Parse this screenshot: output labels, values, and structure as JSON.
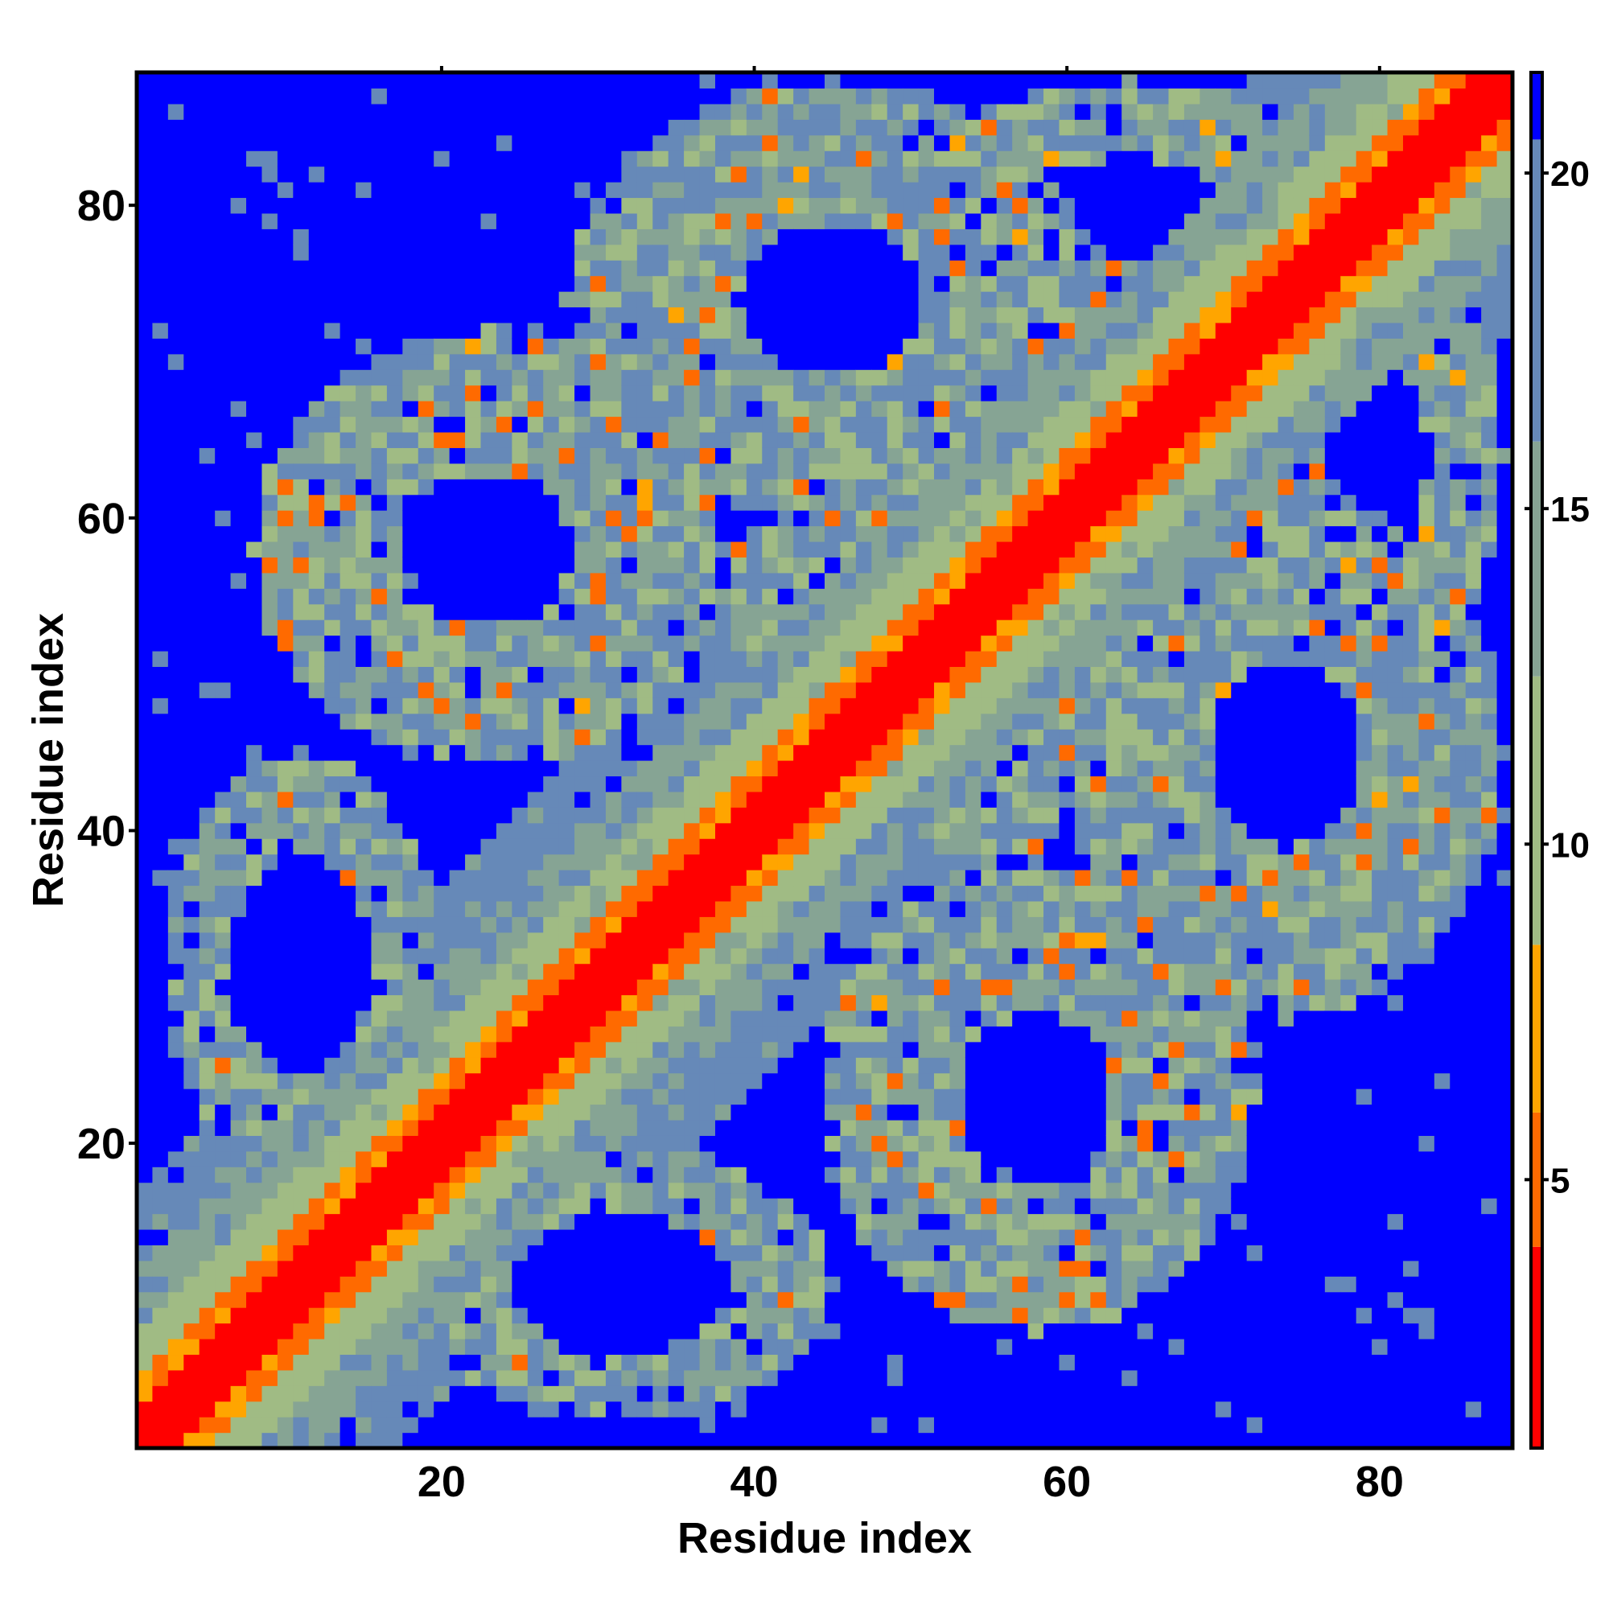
{
  "chart_data": {
    "type": "heatmap",
    "title": "",
    "xlabel": "Residue index",
    "ylabel": "Residue index",
    "n_residues": 88,
    "xlim": [
      1,
      88
    ],
    "ylim": [
      1,
      88
    ],
    "x_ticks": [
      20,
      40,
      60,
      80
    ],
    "y_ticks": [
      20,
      40,
      60,
      80
    ],
    "x_tick_labels": [
      "20",
      "40",
      "60",
      "80"
    ],
    "y_tick_labels": [
      "20",
      "40",
      "60",
      "80"
    ],
    "colorbar": {
      "ticks": [
        5,
        10,
        15,
        20
      ],
      "tick_labels": [
        "5",
        "10",
        "15",
        "20"
      ],
      "range": [
        1,
        21.5
      ],
      "bands": [
        {
          "from": 1.0,
          "to": 4.0,
          "color": "#ff0000"
        },
        {
          "from": 4.0,
          "to": 6.0,
          "color": "#ff6a00"
        },
        {
          "from": 6.0,
          "to": 8.5,
          "color": "#ffa500"
        },
        {
          "from": 8.5,
          "to": 12.5,
          "color": "#a0bb84"
        },
        {
          "from": 12.5,
          "to": 16.0,
          "color": "#86a494"
        },
        {
          "from": 16.0,
          "to": 20.5,
          "color": "#6689b8"
        },
        {
          "from": 20.5,
          "to": 21.5,
          "color": "#0000ff"
        }
      ]
    },
    "description_of_values": "Symmetric residue-residue distance map; values (in colorbar units) are lowest (red, ~1-4) along the main diagonal, orange near-diagonal, olive/blue-grey at intermediate separations, and saturated blue (>20) for distant pairs. Secondary contact bands are visible between residues ~10-40 vs ~45-70 and ~50-75 vs ~70-88."
  }
}
